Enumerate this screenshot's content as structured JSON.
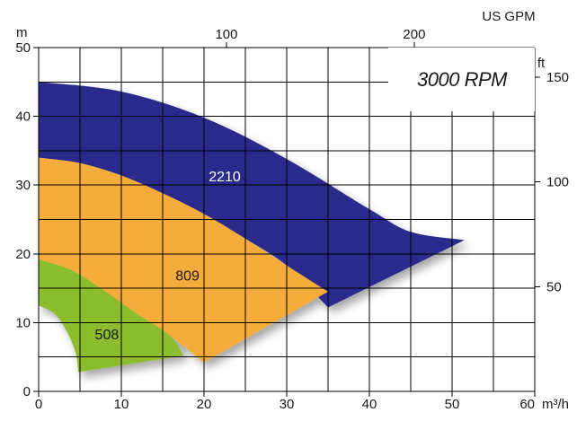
{
  "chart_data": {
    "type": "area",
    "title": "3000 RPM",
    "xlabel": "m³/h",
    "ylabel": "m",
    "secondary_xlabel": "US GPM",
    "secondary_ylabel": "ft",
    "xlim": [
      0,
      60
    ],
    "ylim": [
      0,
      50
    ],
    "x_ticks": [
      0,
      10,
      20,
      30,
      40,
      50,
      60
    ],
    "y_ticks": [
      0,
      10,
      20,
      30,
      40,
      50
    ],
    "secondary_x_ticks": [
      100,
      200,
      300
    ],
    "secondary_y_ticks": [
      50,
      100,
      150
    ],
    "grid": true,
    "series": [
      {
        "name": "2210",
        "color": "#2b2c8c",
        "upper": [
          [
            0,
            45
          ],
          [
            10,
            43.6
          ],
          [
            20,
            39.8
          ],
          [
            30,
            33.8
          ],
          [
            40,
            26.5
          ],
          [
            45,
            23.2
          ],
          [
            51.5,
            22
          ]
        ],
        "lower": [
          [
            0,
            34
          ],
          [
            5,
            33.2
          ],
          [
            10,
            31.4
          ],
          [
            15,
            28.8
          ],
          [
            20,
            25.8
          ],
          [
            25,
            22.2
          ],
          [
            30,
            18.3
          ],
          [
            35,
            12.2
          ]
        ]
      },
      {
        "name": "809",
        "color": "#f6ac3b",
        "upper": [
          [
            0,
            34
          ],
          [
            5,
            33.2
          ],
          [
            10,
            31.4
          ],
          [
            15,
            28.8
          ],
          [
            20,
            25.8
          ],
          [
            25,
            22.2
          ],
          [
            30,
            18.3
          ],
          [
            35,
            14.5
          ]
        ],
        "lower": [
          [
            0,
            19.2
          ],
          [
            4,
            17.6
          ],
          [
            8,
            14.6
          ],
          [
            12,
            11.2
          ],
          [
            16,
            8
          ],
          [
            20,
            4.2
          ]
        ]
      },
      {
        "name": "508",
        "color": "#8cbd2e",
        "upper": [
          [
            0,
            19.2
          ],
          [
            4,
            17.6
          ],
          [
            8,
            14.6
          ],
          [
            12,
            11.2
          ],
          [
            16,
            8
          ],
          [
            17.5,
            5.2
          ]
        ],
        "lower": [
          [
            0,
            12.5
          ],
          [
            2,
            11.2
          ],
          [
            3.5,
            8.5
          ],
          [
            4.5,
            5.5
          ],
          [
            4.8,
            2.8
          ]
        ]
      }
    ]
  }
}
